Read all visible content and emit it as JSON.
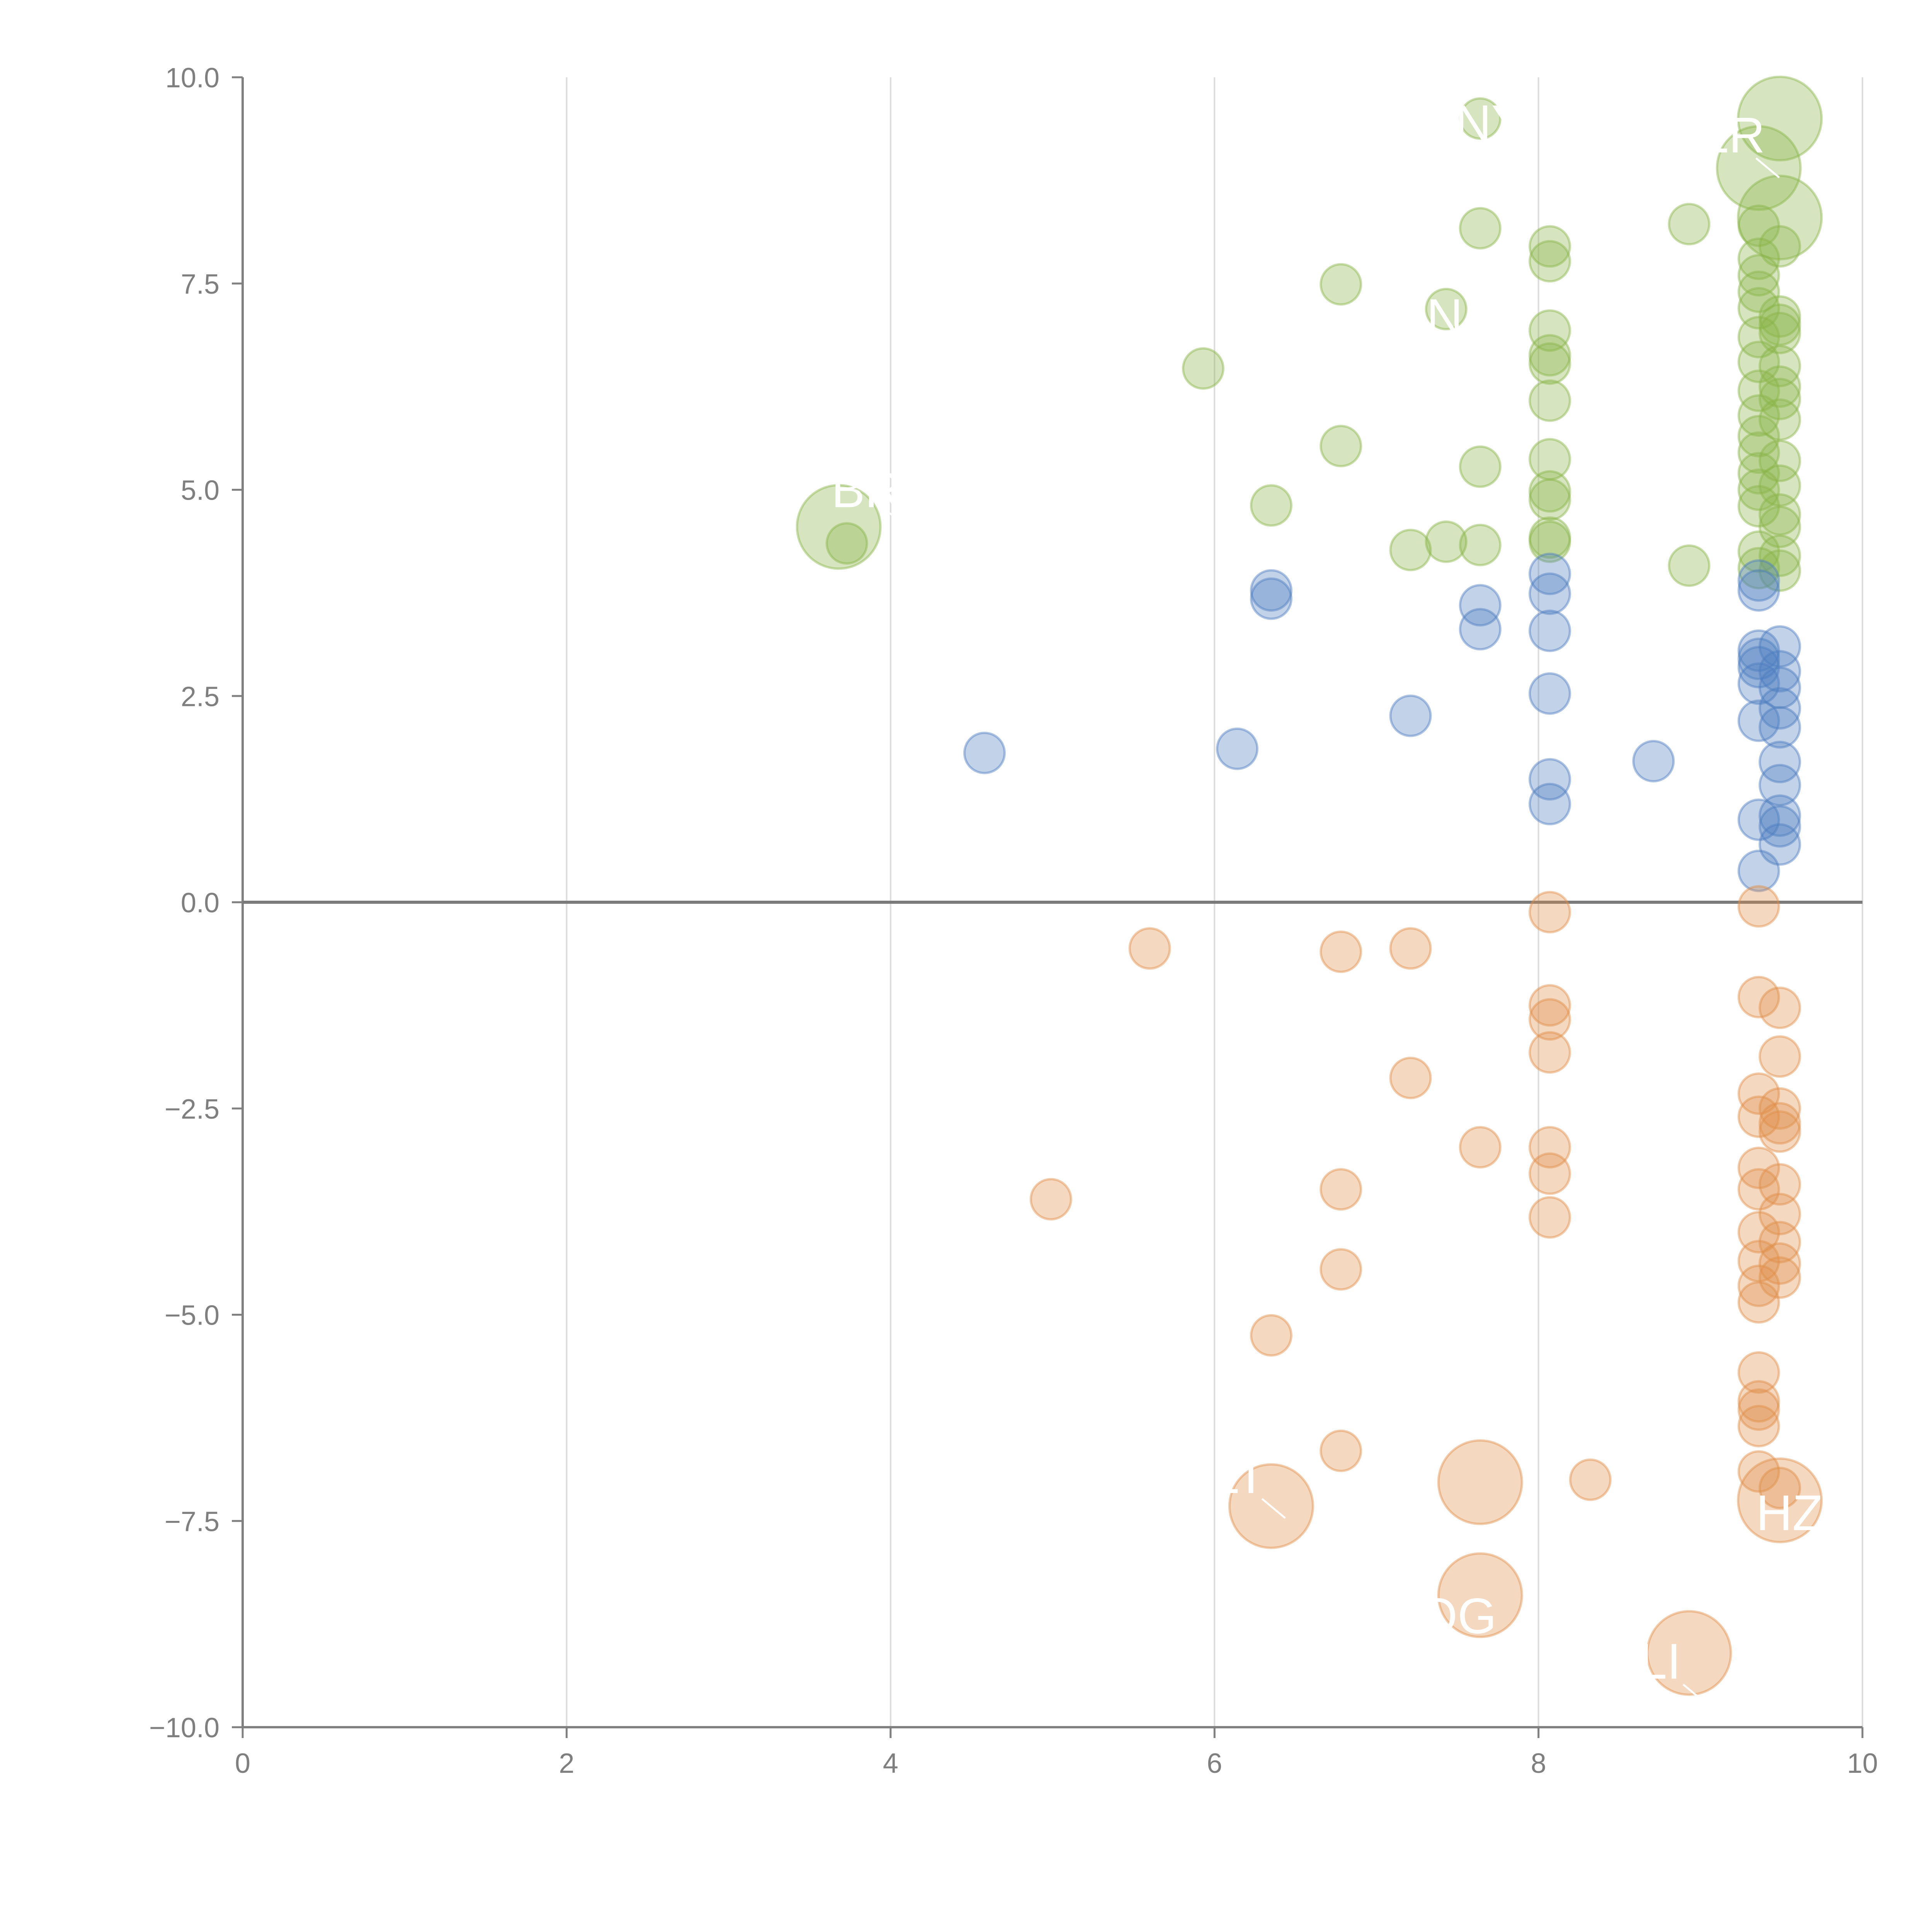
{
  "chart_data": {
    "type": "scatter",
    "title": "",
    "xlabel": "",
    "ylabel": "",
    "xlim": [
      0,
      10
    ],
    "ylim": [
      -10,
      10
    ],
    "x_ticks": [
      0,
      2,
      4,
      6,
      8,
      10
    ],
    "x_tick_labels": [
      "0",
      "2",
      "4",
      "6",
      "8",
      "10"
    ],
    "y_ticks": [
      10,
      7.5,
      5,
      2.5,
      0,
      -2.5,
      -5,
      -7.5,
      -10
    ],
    "y_tick_labels": [
      "10.0",
      "7.5",
      "5.0",
      "2.5",
      "0.0",
      "−2.5",
      "−5.0",
      "−7.5",
      "−10.0"
    ],
    "grid": "vertical",
    "reference_line_y": 0,
    "series": [
      {
        "name": "green",
        "color": "#8ab449",
        "points": [
          [
            7.64,
            9.5
          ],
          [
            9.49,
            9.5,
            "L"
          ],
          [
            9.36,
            8.9,
            "L"
          ],
          [
            9.49,
            8.3,
            "L"
          ],
          [
            8.93,
            8.22
          ],
          [
            7.64,
            8.17
          ],
          [
            8.07,
            7.95
          ],
          [
            8.07,
            7.77
          ],
          [
            9.36,
            8.2
          ],
          [
            9.49,
            7.95
          ],
          [
            9.36,
            7.8
          ],
          [
            9.36,
            7.6
          ],
          [
            9.36,
            7.4
          ],
          [
            9.36,
            7.2
          ],
          [
            9.49,
            7.1
          ],
          [
            9.49,
            7.0
          ],
          [
            9.49,
            6.9
          ],
          [
            6.78,
            7.49
          ],
          [
            7.43,
            7.19
          ],
          [
            8.07,
            6.93
          ],
          [
            8.07,
            6.63
          ],
          [
            8.07,
            6.53
          ],
          [
            8.07,
            6.08
          ],
          [
            5.93,
            6.47
          ],
          [
            9.36,
            6.85
          ],
          [
            9.36,
            6.55
          ],
          [
            9.49,
            6.5
          ],
          [
            9.36,
            6.2
          ],
          [
            9.49,
            6.25
          ],
          [
            9.49,
            6.1
          ],
          [
            9.36,
            5.9
          ],
          [
            9.49,
            5.85
          ],
          [
            9.36,
            5.65
          ],
          [
            9.36,
            5.45
          ],
          [
            9.49,
            5.35
          ],
          [
            9.36,
            5.2
          ],
          [
            9.36,
            5.0
          ],
          [
            9.49,
            5.05
          ],
          [
            9.36,
            4.8
          ],
          [
            9.49,
            4.7
          ],
          [
            9.49,
            4.55
          ],
          [
            6.78,
            5.53
          ],
          [
            7.64,
            5.28
          ],
          [
            8.07,
            5.37
          ],
          [
            8.07,
            4.98
          ],
          [
            8.07,
            4.88
          ],
          [
            6.35,
            4.81
          ],
          [
            3.68,
            4.55,
            "L"
          ],
          [
            3.73,
            4.35
          ],
          [
            7.21,
            4.27
          ],
          [
            7.43,
            4.37
          ],
          [
            7.64,
            4.33
          ],
          [
            8.07,
            4.42
          ],
          [
            8.07,
            4.37
          ],
          [
            8.93,
            4.08
          ],
          [
            9.36,
            4.25
          ],
          [
            9.36,
            4.05
          ],
          [
            9.49,
            4.2
          ],
          [
            9.49,
            4.02
          ]
        ]
      },
      {
        "name": "blue",
        "color": "#4e7dbf",
        "points": [
          [
            6.35,
            3.78
          ],
          [
            6.35,
            3.68
          ],
          [
            7.64,
            3.6
          ],
          [
            7.64,
            3.31
          ],
          [
            8.07,
            3.98
          ],
          [
            8.07,
            3.74
          ],
          [
            8.07,
            3.29
          ],
          [
            8.07,
            2.53
          ],
          [
            8.07,
            1.49
          ],
          [
            8.07,
            1.19
          ],
          [
            9.36,
            3.9
          ],
          [
            9.36,
            3.78
          ],
          [
            9.36,
            3.05
          ],
          [
            9.36,
            2.95
          ],
          [
            9.36,
            2.85
          ],
          [
            9.36,
            2.65
          ],
          [
            9.36,
            2.2
          ],
          [
            9.49,
            3.1
          ],
          [
            9.49,
            2.8
          ],
          [
            9.49,
            2.6
          ],
          [
            9.49,
            2.35
          ],
          [
            9.49,
            2.12
          ],
          [
            9.49,
            1.7
          ],
          [
            9.49,
            1.42
          ],
          [
            9.49,
            1.05
          ],
          [
            9.49,
            0.92
          ],
          [
            9.49,
            0.7
          ],
          [
            9.36,
            1.0
          ],
          [
            9.36,
            0.38
          ],
          [
            7.21,
            2.26
          ],
          [
            8.71,
            1.71
          ],
          [
            6.14,
            1.86
          ],
          [
            4.58,
            1.81
          ]
        ]
      },
      {
        "name": "orange",
        "color": "#e08e4a",
        "points": [
          [
            8.07,
            -0.12
          ],
          [
            9.36,
            -0.05
          ],
          [
            5.6,
            -0.56
          ],
          [
            6.78,
            -0.6
          ],
          [
            7.21,
            -0.56
          ],
          [
            8.07,
            -1.25
          ],
          [
            8.07,
            -1.42
          ],
          [
            8.07,
            -1.82
          ],
          [
            9.36,
            -1.15
          ],
          [
            9.49,
            -1.28
          ],
          [
            9.49,
            -1.87
          ],
          [
            7.21,
            -2.13
          ],
          [
            9.36,
            -2.32
          ],
          [
            9.36,
            -2.6
          ],
          [
            9.49,
            -2.5
          ],
          [
            9.49,
            -2.68
          ],
          [
            9.49,
            -2.78
          ],
          [
            7.64,
            -2.97
          ],
          [
            8.07,
            -2.97
          ],
          [
            8.07,
            -3.29
          ],
          [
            9.36,
            -3.22
          ],
          [
            9.36,
            -3.48
          ],
          [
            9.49,
            -3.42
          ],
          [
            9.49,
            -3.78
          ],
          [
            4.99,
            -3.6
          ],
          [
            6.78,
            -3.48
          ],
          [
            8.07,
            -3.82
          ],
          [
            9.36,
            -4.0
          ],
          [
            9.36,
            -4.35
          ],
          [
            9.36,
            -4.65
          ],
          [
            9.36,
            -4.85
          ],
          [
            9.49,
            -4.12
          ],
          [
            9.49,
            -4.38
          ],
          [
            9.49,
            -4.55
          ],
          [
            6.78,
            -4.45
          ],
          [
            6.35,
            -5.25
          ],
          [
            9.36,
            -5.7
          ],
          [
            9.36,
            -6.05
          ],
          [
            9.36,
            -6.15
          ],
          [
            9.36,
            -6.35
          ],
          [
            6.78,
            -6.65
          ],
          [
            9.36,
            -6.9
          ],
          [
            8.32,
            -7.0
          ],
          [
            7.64,
            -7.03,
            "L"
          ],
          [
            6.35,
            -7.32,
            "L"
          ],
          [
            9.49,
            -7.25,
            "L"
          ],
          [
            9.49,
            -7.1
          ],
          [
            7.64,
            -8.4,
            "L"
          ],
          [
            8.93,
            -9.1,
            "L"
          ]
        ]
      }
    ],
    "point_labels": [
      {
        "text": "NY",
        "x": 7.7,
        "y": 9.45
      },
      {
        "text": "LR",
        "x": 9.2,
        "y": 9.3
      },
      {
        "text": "ON",
        "x": 7.3,
        "y": 7.1
      },
      {
        "text": "BR",
        "x": 3.85,
        "y": 5.0
      },
      {
        "text": "LT",
        "x": 6.15,
        "y": -6.95
      },
      {
        "text": "HZ",
        "x": 9.55,
        "y": -7.4
      },
      {
        "text": "OG",
        "x": 7.5,
        "y": -8.65
      },
      {
        "text": "LI",
        "x": 8.75,
        "y": -9.2
      }
    ]
  }
}
